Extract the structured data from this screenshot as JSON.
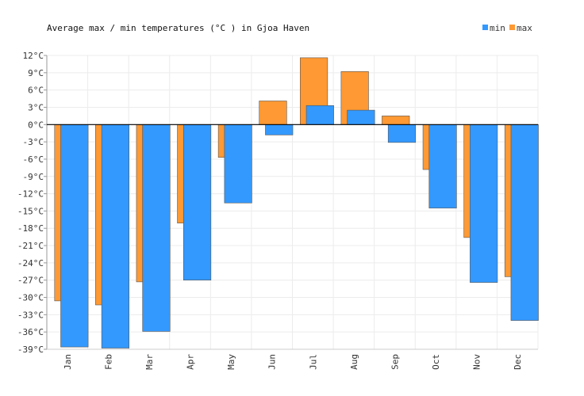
{
  "chart_data": {
    "type": "bar",
    "title": "Average max / min temperatures (°C ) in Gjoa Haven",
    "categories": [
      "Jan",
      "Feb",
      "Mar",
      "Apr",
      "May",
      "Jun",
      "Jul",
      "Aug",
      "Sep",
      "Oct",
      "Nov",
      "Dec"
    ],
    "series": [
      {
        "name": "max",
        "color": "#ff9933",
        "values": [
          -30.6,
          -31.3,
          -27.3,
          -17.1,
          -5.7,
          4.1,
          11.6,
          9.2,
          1.5,
          -7.8,
          -19.6,
          -26.4
        ]
      },
      {
        "name": "min",
        "color": "#3399ff",
        "values": [
          -38.6,
          -38.8,
          -35.9,
          -27.0,
          -13.6,
          -1.8,
          3.3,
          2.5,
          -3.1,
          -14.5,
          -27.4,
          -34.0
        ]
      }
    ],
    "legend": [
      {
        "name": "min",
        "color": "#3399ff"
      },
      {
        "name": "max",
        "color": "#ff9933"
      }
    ],
    "legend_position": "top-right",
    "ylim": [
      -39,
      12
    ],
    "yticks": [
      12,
      9,
      6,
      3,
      0,
      -3,
      -6,
      -9,
      -12,
      -15,
      -18,
      -21,
      -24,
      -27,
      -30,
      -33,
      -36,
      -39
    ],
    "ytick_labels": [
      "12°C",
      "9°C",
      "6°C",
      "3°C",
      "0°C",
      "-3°C",
      "-6°C",
      "-9°C",
      "-12°C",
      "-15°C",
      "-18°C",
      "-21°C",
      "-24°C",
      "-27°C",
      "-30°C",
      "-33°C",
      "-36°C",
      "-39°C"
    ],
    "grid": true,
    "xlabel": "",
    "ylabel": ""
  }
}
